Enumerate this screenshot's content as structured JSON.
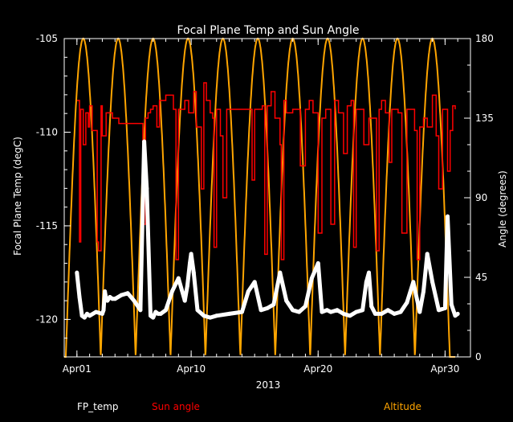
{
  "chart_data": {
    "type": "line",
    "title": "Focal Plane Temp and Sun Angle",
    "xlabel": "2013",
    "ylabel_left": "Focal Plane Temp (degC)",
    "ylabel_right": "Angle (degrees)",
    "x_unit": "day of April 2013",
    "xlim": [
      0,
      32
    ],
    "ylim_left": [
      -122,
      -105
    ],
    "ylim_right": [
      0,
      180
    ],
    "x_ticks": [
      {
        "value": 1,
        "label": "Apr01"
      },
      {
        "value": 10,
        "label": "Apr10"
      },
      {
        "value": 20,
        "label": "Apr20"
      },
      {
        "value": 30,
        "label": "Apr30"
      }
    ],
    "y_ticks_left": [
      {
        "value": -105,
        "label": "-105"
      },
      {
        "value": -110,
        "label": "-110"
      },
      {
        "value": -115,
        "label": "-115"
      },
      {
        "value": -120,
        "label": "-120"
      }
    ],
    "y_ticks_right": [
      {
        "value": 0,
        "label": "0"
      },
      {
        "value": 45,
        "label": "45"
      },
      {
        "value": 90,
        "label": "90"
      },
      {
        "value": 135,
        "label": "135"
      },
      {
        "value": 180,
        "label": "180"
      }
    ],
    "legend": [
      "FP_temp",
      "Sun angle",
      "Altitude"
    ],
    "legend_placement": "bottom",
    "grid": false,
    "colors": {
      "background": "#000000",
      "axes": "#ffffff",
      "FP_temp": "#ffffff",
      "Sun angle": "#ff0000",
      "Altitude": "#ffa500"
    },
    "series": [
      {
        "name": "FP_temp",
        "axis": "left",
        "x": [
          1.0,
          1.2,
          1.4,
          1.6,
          1.8,
          2.0,
          2.5,
          3.0,
          3.1,
          3.2,
          3.3,
          3.4,
          3.6,
          3.8,
          4.0,
          4.5,
          5.0,
          5.5,
          6.0,
          6.3,
          6.5,
          6.8,
          7.0,
          7.2,
          7.4,
          7.6,
          8.0,
          8.5,
          9.0,
          9.5,
          9.7,
          9.9,
          10.0,
          10.2,
          10.5,
          11.0,
          11.5,
          12.0,
          13.0,
          14.0,
          14.5,
          15.0,
          15.5,
          16.0,
          16.5,
          17.0,
          17.5,
          18.0,
          18.5,
          19.0,
          19.5,
          20.0,
          20.3,
          20.7,
          21.0,
          21.5,
          22.0,
          22.5,
          23.0,
          23.5,
          23.8,
          24.0,
          24.2,
          24.5,
          25.0,
          25.5,
          26.0,
          26.5,
          27.0,
          27.5,
          28.0,
          28.3,
          28.6,
          29.0,
          29.5,
          30.0,
          30.2,
          30.5,
          30.8,
          31.0
        ],
        "y": [
          -117.5,
          -118.8,
          -119.8,
          -119.9,
          -119.7,
          -119.8,
          -119.6,
          -119.7,
          -119.5,
          -118.5,
          -118.9,
          -119.0,
          -118.8,
          -118.9,
          -118.9,
          -118.7,
          -118.6,
          -119.0,
          -119.5,
          -110.5,
          -113.0,
          -119.8,
          -119.9,
          -119.6,
          -119.7,
          -119.7,
          -119.5,
          -118.5,
          -117.8,
          -119.0,
          -118.2,
          -117.0,
          -116.5,
          -117.5,
          -119.5,
          -119.8,
          -119.9,
          -119.8,
          -119.7,
          -119.6,
          -118.5,
          -118.0,
          -119.5,
          -119.4,
          -119.2,
          -117.5,
          -119.0,
          -119.5,
          -119.6,
          -119.3,
          -117.8,
          -117.0,
          -119.6,
          -119.5,
          -119.6,
          -119.5,
          -119.7,
          -119.8,
          -119.6,
          -119.5,
          -118.0,
          -117.5,
          -119.3,
          -119.7,
          -119.7,
          -119.5,
          -119.7,
          -119.6,
          -119.1,
          -118.0,
          -119.6,
          -118.5,
          -116.5,
          -118.0,
          -119.5,
          -119.4,
          -114.5,
          -119.2,
          -119.8,
          -119.7
        ]
      },
      {
        "name": "Sun angle",
        "axis": "right",
        "x": [
          1.0,
          1.2,
          1.3,
          1.5,
          1.7,
          1.9,
          2.0,
          2.2,
          2.6,
          2.7,
          2.9,
          3.0,
          3.3,
          3.7,
          3.8,
          4.0,
          4.3,
          6.0,
          6.2,
          6.4,
          6.6,
          6.8,
          7.0,
          7.3,
          7.5,
          8.0,
          8.6,
          8.8,
          9.0,
          9.5,
          9.8,
          10.2,
          10.4,
          10.8,
          11.0,
          11.2,
          11.5,
          11.7,
          11.8,
          12.0,
          12.3,
          12.5,
          12.8,
          13.0,
          13.3,
          13.7,
          14.5,
          14.8,
          15.0,
          15.6,
          15.8,
          16.0,
          16.3,
          16.6,
          17.0,
          17.1,
          17.3,
          17.5,
          18.0,
          18.3,
          18.6,
          19.0,
          19.3,
          19.6,
          20.0,
          20.3,
          20.6,
          20.8,
          21.0,
          21.3,
          21.6,
          22.0,
          22.3,
          22.6,
          22.8,
          23.0,
          23.3,
          23.6,
          24.0,
          24.3,
          24.6,
          24.8,
          25.0,
          25.3,
          25.6,
          25.8,
          26.0,
          26.3,
          26.6,
          27.0,
          27.3,
          27.6,
          27.8,
          28.0,
          28.3,
          28.6,
          29.0,
          29.3,
          29.5,
          29.8,
          30.0,
          30.2,
          30.4,
          30.6,
          30.8
        ],
        "y": [
          145,
          65,
          140,
          120,
          138,
          130,
          142,
          128,
          65,
          60,
          142,
          125,
          138,
          138,
          135,
          135,
          132,
          132,
          75,
          135,
          138,
          140,
          142,
          130,
          145,
          148,
          140,
          55,
          140,
          145,
          138,
          150,
          130,
          95,
          155,
          145,
          138,
          135,
          62,
          140,
          125,
          90,
          140,
          140,
          140,
          140,
          140,
          100,
          140,
          142,
          58,
          142,
          150,
          135,
          120,
          55,
          145,
          138,
          140,
          140,
          108,
          140,
          145,
          138,
          70,
          135,
          140,
          140,
          75,
          145,
          138,
          115,
          142,
          145,
          62,
          140,
          140,
          120,
          135,
          135,
          60,
          140,
          145,
          138,
          110,
          140,
          140,
          138,
          70,
          140,
          140,
          128,
          55,
          130,
          135,
          130,
          148,
          125,
          95,
          140,
          140,
          105,
          128,
          142,
          140
        ]
      },
      {
        "name": "Altitude",
        "axis": "right",
        "x": [
          1.5,
          4.25,
          7.0,
          9.75,
          12.5,
          15.25,
          18.0,
          20.75,
          23.5,
          26.25,
          29.0
        ],
        "y": [
          180,
          180,
          180,
          180,
          180,
          180,
          180,
          180,
          180,
          180,
          180
        ]
      }
    ]
  }
}
